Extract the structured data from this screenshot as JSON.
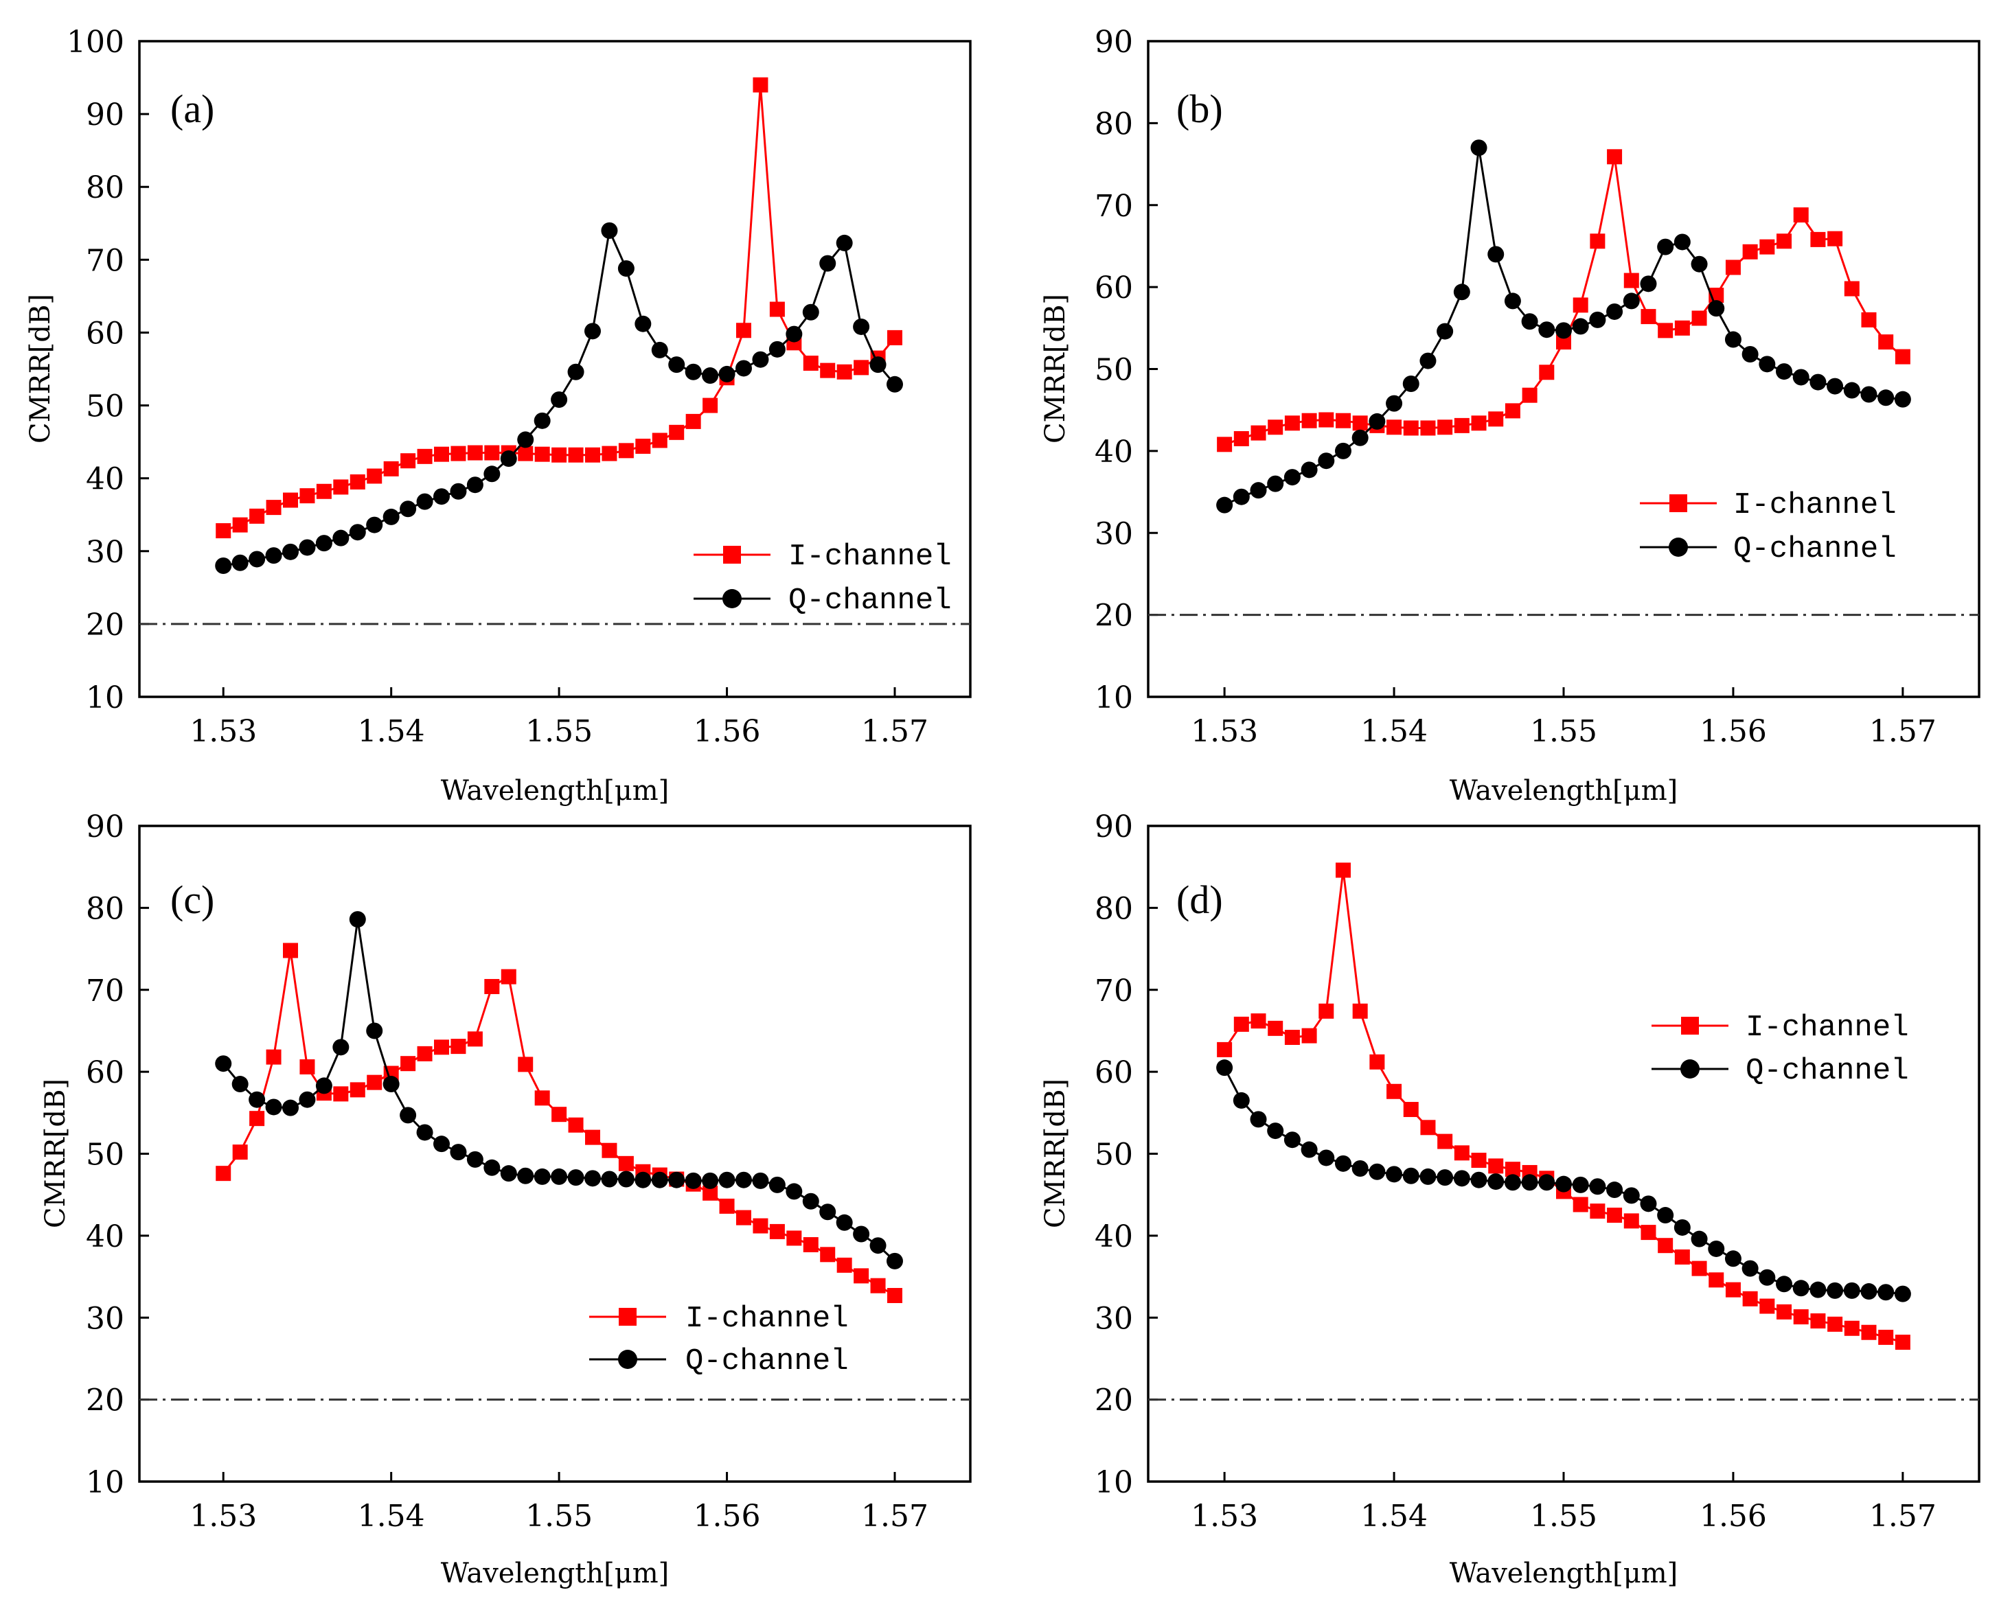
{
  "colors": {
    "i_channel": "#ff0000",
    "q_channel": "#000000",
    "reference": "#333333"
  },
  "chart_data": [
    {
      "type": "line",
      "panel_label": "(a)",
      "xlabel": "Wavelength[μm]",
      "ylabel": "CMRR[dB]",
      "xlim": [
        1.525,
        1.5745
      ],
      "ylim": [
        10,
        100
      ],
      "xticks": [
        1.53,
        1.54,
        1.55,
        1.56,
        1.57
      ],
      "xtick_labels": [
        "1.53",
        "1.54",
        "1.55",
        "1.56",
        "1.57"
      ],
      "yticks": [
        10,
        20,
        30,
        40,
        50,
        60,
        70,
        80,
        90,
        100
      ],
      "ytick_labels": [
        "10",
        "20",
        "30",
        "40",
        "50",
        "60",
        "70",
        "80",
        "90",
        "100"
      ],
      "reference_line_y": 20,
      "legend_position": "lower-right",
      "legend": [
        "I-channel",
        "Q-channel"
      ],
      "series": [
        {
          "name": "I-channel",
          "marker": "square",
          "x": [
            1.53,
            1.531,
            1.532,
            1.533,
            1.534,
            1.535,
            1.536,
            1.537,
            1.538,
            1.539,
            1.54,
            1.541,
            1.542,
            1.543,
            1.544,
            1.545,
            1.546,
            1.547,
            1.548,
            1.549,
            1.55,
            1.551,
            1.552,
            1.553,
            1.554,
            1.555,
            1.556,
            1.557,
            1.558,
            1.559,
            1.56,
            1.561,
            1.562,
            1.563,
            1.564,
            1.565,
            1.566,
            1.567,
            1.568,
            1.569,
            1.57
          ],
          "y": [
            32.8,
            33.6,
            34.8,
            36.0,
            37.0,
            37.6,
            38.2,
            38.8,
            39.5,
            40.3,
            41.3,
            42.4,
            43.0,
            43.3,
            43.4,
            43.5,
            43.5,
            43.5,
            43.4,
            43.3,
            43.2,
            43.2,
            43.2,
            43.4,
            43.8,
            44.4,
            45.2,
            46.3,
            47.8,
            50.0,
            53.8,
            60.3,
            94.0,
            63.2,
            58.6,
            55.8,
            54.8,
            54.6,
            55.2,
            56.5,
            59.3
          ]
        },
        {
          "name": "Q-channel",
          "marker": "circle",
          "x": [
            1.53,
            1.531,
            1.532,
            1.533,
            1.534,
            1.535,
            1.536,
            1.537,
            1.538,
            1.539,
            1.54,
            1.541,
            1.542,
            1.543,
            1.544,
            1.545,
            1.546,
            1.547,
            1.548,
            1.549,
            1.55,
            1.551,
            1.552,
            1.553,
            1.554,
            1.555,
            1.556,
            1.557,
            1.558,
            1.559,
            1.56,
            1.561,
            1.562,
            1.563,
            1.564,
            1.565,
            1.566,
            1.567,
            1.568,
            1.569,
            1.57
          ],
          "y": [
            28.0,
            28.4,
            28.9,
            29.4,
            29.9,
            30.5,
            31.1,
            31.8,
            32.6,
            33.6,
            34.7,
            35.8,
            36.8,
            37.5,
            38.2,
            39.1,
            40.6,
            42.7,
            45.3,
            47.9,
            50.8,
            54.6,
            60.2,
            74.0,
            68.8,
            61.2,
            57.6,
            55.6,
            54.6,
            54.1,
            54.3,
            55.1,
            56.3,
            57.7,
            59.8,
            62.8,
            69.5,
            72.3,
            60.8,
            55.6,
            52.9
          ]
        }
      ]
    },
    {
      "type": "line",
      "panel_label": "(b)",
      "xlabel": "Wavelength[μm]",
      "ylabel": "CMRR[dB]",
      "xlim": [
        1.5255,
        1.5745
      ],
      "ylim": [
        10,
        90
      ],
      "xticks": [
        1.53,
        1.54,
        1.55,
        1.56,
        1.57
      ],
      "xtick_labels": [
        "1.53",
        "1.54",
        "1.55",
        "1.56",
        "1.57"
      ],
      "yticks": [
        10,
        20,
        30,
        40,
        50,
        60,
        70,
        80,
        90
      ],
      "ytick_labels": [
        "10",
        "20",
        "30",
        "40",
        "50",
        "60",
        "70",
        "80",
        "90"
      ],
      "reference_line_y": 20,
      "legend_position": "right",
      "legend": [
        "I-channel",
        "Q-channel"
      ],
      "series": [
        {
          "name": "I-channel",
          "marker": "square",
          "x": [
            1.53,
            1.531,
            1.532,
            1.533,
            1.534,
            1.535,
            1.536,
            1.537,
            1.538,
            1.539,
            1.54,
            1.541,
            1.542,
            1.543,
            1.544,
            1.545,
            1.546,
            1.547,
            1.548,
            1.549,
            1.55,
            1.551,
            1.552,
            1.553,
            1.554,
            1.555,
            1.556,
            1.557,
            1.558,
            1.559,
            1.56,
            1.561,
            1.562,
            1.563,
            1.564,
            1.565,
            1.566,
            1.567,
            1.568,
            1.569,
            1.57
          ],
          "y": [
            40.8,
            41.5,
            42.2,
            42.9,
            43.4,
            43.7,
            43.8,
            43.7,
            43.4,
            43.1,
            42.9,
            42.8,
            42.8,
            42.9,
            43.1,
            43.4,
            43.9,
            44.9,
            46.8,
            49.6,
            53.3,
            57.8,
            65.6,
            75.9,
            60.8,
            56.4,
            54.7,
            55.0,
            56.2,
            59.0,
            62.4,
            64.3,
            64.9,
            65.6,
            68.8,
            65.8,
            65.9,
            59.8,
            56.0,
            53.3,
            51.5
          ]
        },
        {
          "name": "Q-channel",
          "marker": "circle",
          "x": [
            1.53,
            1.531,
            1.532,
            1.533,
            1.534,
            1.535,
            1.536,
            1.537,
            1.538,
            1.539,
            1.54,
            1.541,
            1.542,
            1.543,
            1.544,
            1.545,
            1.546,
            1.547,
            1.548,
            1.549,
            1.55,
            1.551,
            1.552,
            1.553,
            1.554,
            1.555,
            1.556,
            1.557,
            1.558,
            1.559,
            1.56,
            1.561,
            1.562,
            1.563,
            1.564,
            1.565,
            1.566,
            1.567,
            1.568,
            1.569,
            1.57
          ],
          "y": [
            33.4,
            34.4,
            35.2,
            36.0,
            36.8,
            37.7,
            38.8,
            40.0,
            41.6,
            43.6,
            45.8,
            48.2,
            51.0,
            54.6,
            59.4,
            77.0,
            64.0,
            58.3,
            55.8,
            54.8,
            54.7,
            55.2,
            56.0,
            57.0,
            58.3,
            60.4,
            64.9,
            65.5,
            62.8,
            57.4,
            53.6,
            51.8,
            50.6,
            49.7,
            49.0,
            48.4,
            47.9,
            47.4,
            46.9,
            46.5,
            46.3
          ]
        }
      ]
    },
    {
      "type": "line",
      "panel_label": "(c)",
      "xlabel": "Wavelength[μm]",
      "ylabel": "CMRR[dB]",
      "xlim": [
        1.525,
        1.5745
      ],
      "ylim": [
        10,
        90
      ],
      "xticks": [
        1.53,
        1.54,
        1.55,
        1.56,
        1.57
      ],
      "xtick_labels": [
        "1.53",
        "1.54",
        "1.55",
        "1.56",
        "1.57"
      ],
      "yticks": [
        10,
        20,
        30,
        40,
        50,
        60,
        70,
        80,
        90
      ],
      "ytick_labels": [
        "10",
        "20",
        "30",
        "40",
        "50",
        "60",
        "70",
        "80",
        "90"
      ],
      "reference_line_y": 20,
      "legend_position": "lower-right",
      "legend": [
        "I-channel",
        "Q-channel"
      ],
      "series": [
        {
          "name": "I-channel",
          "marker": "square",
          "x": [
            1.53,
            1.531,
            1.532,
            1.533,
            1.534,
            1.535,
            1.536,
            1.537,
            1.538,
            1.539,
            1.54,
            1.541,
            1.542,
            1.543,
            1.544,
            1.545,
            1.546,
            1.547,
            1.548,
            1.549,
            1.55,
            1.551,
            1.552,
            1.553,
            1.554,
            1.555,
            1.556,
            1.557,
            1.558,
            1.559,
            1.56,
            1.561,
            1.562,
            1.563,
            1.564,
            1.565,
            1.566,
            1.567,
            1.568,
            1.569,
            1.57
          ],
          "y": [
            47.6,
            50.2,
            54.3,
            61.8,
            74.8,
            60.6,
            57.4,
            57.3,
            57.8,
            58.7,
            59.8,
            61.0,
            62.2,
            63.0,
            63.1,
            64.0,
            70.4,
            71.6,
            60.9,
            56.8,
            54.8,
            53.5,
            52.0,
            50.4,
            48.8,
            47.8,
            47.4,
            46.9,
            46.3,
            45.2,
            43.6,
            42.2,
            41.2,
            40.5,
            39.7,
            38.9,
            37.7,
            36.4,
            35.1,
            33.9,
            32.7
          ]
        },
        {
          "name": "Q-channel",
          "marker": "circle",
          "x": [
            1.53,
            1.531,
            1.532,
            1.533,
            1.534,
            1.535,
            1.536,
            1.537,
            1.538,
            1.539,
            1.54,
            1.541,
            1.542,
            1.543,
            1.544,
            1.545,
            1.546,
            1.547,
            1.548,
            1.549,
            1.55,
            1.551,
            1.552,
            1.553,
            1.554,
            1.555,
            1.556,
            1.557,
            1.558,
            1.559,
            1.56,
            1.561,
            1.562,
            1.563,
            1.564,
            1.565,
            1.566,
            1.567,
            1.568,
            1.569,
            1.57
          ],
          "y": [
            61.0,
            58.5,
            56.6,
            55.7,
            55.6,
            56.6,
            58.3,
            63.0,
            78.6,
            65.0,
            58.5,
            54.7,
            52.6,
            51.2,
            50.2,
            49.3,
            48.3,
            47.6,
            47.3,
            47.2,
            47.2,
            47.1,
            47.0,
            46.9,
            46.9,
            46.8,
            46.8,
            46.8,
            46.7,
            46.7,
            46.8,
            46.8,
            46.7,
            46.2,
            45.4,
            44.2,
            42.9,
            41.6,
            40.2,
            38.8,
            36.9
          ]
        }
      ]
    },
    {
      "type": "line",
      "panel_label": "(d)",
      "xlabel": "Wavelength[μm]",
      "ylabel": "CMRR[dB]",
      "xlim": [
        1.5255,
        1.5745
      ],
      "ylim": [
        10,
        90
      ],
      "xticks": [
        1.53,
        1.54,
        1.55,
        1.56,
        1.57
      ],
      "xtick_labels": [
        "1.53",
        "1.54",
        "1.55",
        "1.56",
        "1.57"
      ],
      "yticks": [
        10,
        20,
        30,
        40,
        50,
        60,
        70,
        80,
        90
      ],
      "ytick_labels": [
        "10",
        "20",
        "30",
        "40",
        "50",
        "60",
        "70",
        "80",
        "90"
      ],
      "reference_line_y": 20,
      "legend_position": "right",
      "legend": [
        "I-channel",
        "Q-channel"
      ],
      "series": [
        {
          "name": "I-channel",
          "marker": "square",
          "x": [
            1.53,
            1.531,
            1.532,
            1.533,
            1.534,
            1.535,
            1.536,
            1.537,
            1.538,
            1.539,
            1.54,
            1.541,
            1.542,
            1.543,
            1.544,
            1.545,
            1.546,
            1.547,
            1.548,
            1.549,
            1.55,
            1.551,
            1.552,
            1.553,
            1.554,
            1.555,
            1.556,
            1.557,
            1.558,
            1.559,
            1.56,
            1.561,
            1.562,
            1.563,
            1.564,
            1.565,
            1.566,
            1.567,
            1.568,
            1.569,
            1.57
          ],
          "y": [
            62.7,
            65.8,
            66.2,
            65.3,
            64.2,
            64.4,
            67.4,
            84.6,
            67.4,
            61.2,
            57.6,
            55.4,
            53.2,
            51.5,
            50.1,
            49.2,
            48.5,
            48.1,
            47.7,
            47.0,
            45.4,
            43.8,
            43.0,
            42.5,
            41.8,
            40.4,
            38.8,
            37.4,
            36.0,
            34.6,
            33.4,
            32.3,
            31.4,
            30.7,
            30.1,
            29.6,
            29.2,
            28.7,
            28.2,
            27.6,
            27.0
          ]
        },
        {
          "name": "Q-channel",
          "marker": "circle",
          "x": [
            1.53,
            1.531,
            1.532,
            1.533,
            1.534,
            1.535,
            1.536,
            1.537,
            1.538,
            1.539,
            1.54,
            1.541,
            1.542,
            1.543,
            1.544,
            1.545,
            1.546,
            1.547,
            1.548,
            1.549,
            1.55,
            1.551,
            1.552,
            1.553,
            1.554,
            1.555,
            1.556,
            1.557,
            1.558,
            1.559,
            1.56,
            1.561,
            1.562,
            1.563,
            1.564,
            1.565,
            1.566,
            1.567,
            1.568,
            1.569,
            1.57
          ],
          "y": [
            60.5,
            56.5,
            54.2,
            52.8,
            51.7,
            50.5,
            49.5,
            48.8,
            48.2,
            47.8,
            47.5,
            47.3,
            47.2,
            47.1,
            47.0,
            46.8,
            46.6,
            46.5,
            46.5,
            46.5,
            46.3,
            46.2,
            46.0,
            45.6,
            44.9,
            43.9,
            42.5,
            41.0,
            39.6,
            38.4,
            37.2,
            36.0,
            34.9,
            34.1,
            33.6,
            33.4,
            33.3,
            33.3,
            33.2,
            33.1,
            32.9
          ]
        }
      ]
    }
  ]
}
